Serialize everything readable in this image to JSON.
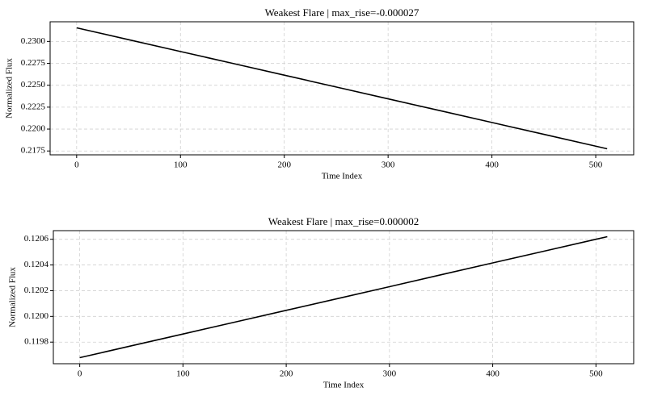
{
  "chart_data": [
    {
      "type": "line",
      "title": "Weakest Flare | max_rise=-0.000027",
      "x_label": "Time Index",
      "y_label": "Normalized Flux",
      "x": [
        0,
        50,
        100,
        150,
        200,
        250,
        300,
        350,
        400,
        450,
        500,
        511
      ],
      "series": [
        {
          "name": "flux",
          "color": "#000000",
          "values": [
            0.23155,
            0.2302,
            0.22885,
            0.2275,
            0.22615,
            0.2248,
            0.22345,
            0.2221,
            0.22075,
            0.2194,
            0.21805,
            0.21775
          ]
        }
      ],
      "xlim": [
        -25.55,
        536.55
      ],
      "ylim": [
        0.21706,
        0.23224
      ],
      "xticks": [
        0,
        100,
        200,
        300,
        400,
        500
      ],
      "yticks": [
        {
          "value": 0.2175,
          "label": "0.2175"
        },
        {
          "value": 0.22,
          "label": "0.2200"
        },
        {
          "value": 0.2225,
          "label": "0.2225"
        },
        {
          "value": 0.225,
          "label": "0.2250"
        },
        {
          "value": 0.2275,
          "label": "0.2275"
        },
        {
          "value": 0.23,
          "label": "0.2300"
        }
      ],
      "grid": true
    },
    {
      "type": "line",
      "title": "Weakest Flare | max_rise=0.000002",
      "x_label": "Time Index",
      "y_label": "Normalized Flux",
      "x": [
        0,
        50,
        100,
        150,
        200,
        250,
        300,
        350,
        400,
        450,
        500,
        511
      ],
      "series": [
        {
          "name": "flux",
          "color": "#000000",
          "values": [
            0.119679,
            0.119771,
            0.119863,
            0.119955,
            0.120047,
            0.120139,
            0.120231,
            0.120324,
            0.120416,
            0.120508,
            0.1206,
            0.12062
          ]
        }
      ],
      "xlim": [
        -25.55,
        536.55
      ],
      "ylim": [
        0.119632,
        0.120667
      ],
      "xticks": [
        0,
        100,
        200,
        300,
        400,
        500
      ],
      "yticks": [
        0.1198,
        {
          "value": 0.12,
          "label": "0.1200"
        },
        0.1202,
        0.1204,
        0.1206
      ],
      "grid": true
    }
  ]
}
